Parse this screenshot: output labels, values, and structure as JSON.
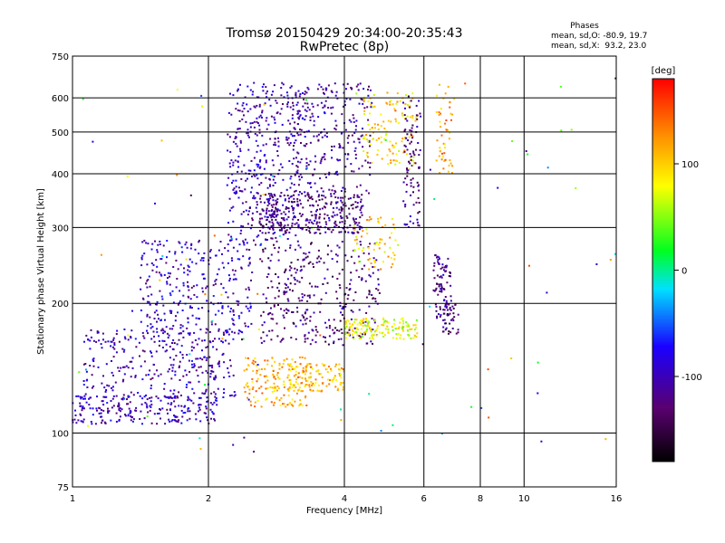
{
  "chart_data": {
    "type": "scatter",
    "title": "Tromsø 20150429 20:34:00-20:35:43",
    "subtitle": "RwPretec (8p)",
    "xlabel": "Frequency [MHz]",
    "ylabel": "Stationary phase Virtual Height [km]",
    "x_scale": "log",
    "y_scale": "log",
    "xlim": [
      1,
      16
    ],
    "ylim": [
      75,
      750
    ],
    "x_ticks": [
      1,
      2,
      4,
      6,
      8,
      10,
      16
    ],
    "y_ticks": [
      75,
      100,
      200,
      300,
      400,
      500,
      600,
      750
    ],
    "grid": true,
    "stats": {
      "title": "Phases",
      "line_o": "mean, sd,O: -80.9, 19.7",
      "line_x": "mean, sd,X:  93.2, 23.0"
    },
    "colorbar": {
      "label": "[deg]",
      "range": [
        -180,
        180
      ],
      "ticks": [
        100,
        0,
        -100
      ],
      "colormap": "rainbow (black at -180, violet, blue, cyan, green, yellow, orange, red at 180)"
    },
    "point_clusters": [
      {
        "x_range": [
          1.0,
          2.1
        ],
        "y_range": [
          105,
          122
        ],
        "phase": -100,
        "count": 230
      },
      {
        "x_range": [
          1.05,
          2.3
        ],
        "y_range": [
          120,
          175
        ],
        "phase": -100,
        "count": 320
      },
      {
        "x_range": [
          1.4,
          2.5
        ],
        "y_range": [
          170,
          280
        ],
        "phase": -95,
        "count": 300
      },
      {
        "x_range": [
          2.2,
          3.2
        ],
        "y_range": [
          270,
          650
        ],
        "phase": -100,
        "count": 380
      },
      {
        "x_range": [
          2.6,
          4.4
        ],
        "y_range": [
          290,
          360
        ],
        "phase": -120,
        "count": 320
      },
      {
        "x_range": [
          2.6,
          4.8
        ],
        "y_range": [
          160,
          280
        ],
        "phase": -125,
        "count": 330
      },
      {
        "x_range": [
          3.0,
          4.6
        ],
        "y_range": [
          360,
          650
        ],
        "phase": -110,
        "count": 260
      },
      {
        "x_range": [
          2.4,
          3.3
        ],
        "y_range": [
          115,
          150
        ],
        "phase": 115,
        "count": 160
      },
      {
        "x_range": [
          3.0,
          4.0
        ],
        "y_range": [
          125,
          145
        ],
        "phase": 110,
        "count": 120
      },
      {
        "x_range": [
          4.0,
          5.8
        ],
        "y_range": [
          165,
          185
        ],
        "phase": 75,
        "count": 150
      },
      {
        "x_range": [
          4.4,
          5.8
        ],
        "y_range": [
          420,
          620
        ],
        "phase": 95,
        "count": 120
      },
      {
        "x_range": [
          5.4,
          5.9
        ],
        "y_range": [
          300,
          600
        ],
        "phase": -120,
        "count": 90
      },
      {
        "x_range": [
          6.3,
          6.9
        ],
        "y_range": [
          180,
          260
        ],
        "phase": -120,
        "count": 80
      },
      {
        "x_range": [
          6.4,
          7.0
        ],
        "y_range": [
          400,
          650
        ],
        "phase": 120,
        "count": 50
      },
      {
        "x_range": [
          6.6,
          7.2
        ],
        "y_range": [
          170,
          200
        ],
        "phase": -130,
        "count": 40
      },
      {
        "x_range": [
          4.2,
          5.2
        ],
        "y_range": [
          240,
          320
        ],
        "phase": 100,
        "count": 60
      },
      {
        "x_range": [
          1.0,
          16.0
        ],
        "y_range": [
          90,
          680
        ],
        "phase": 0,
        "count": 110
      }
    ]
  }
}
